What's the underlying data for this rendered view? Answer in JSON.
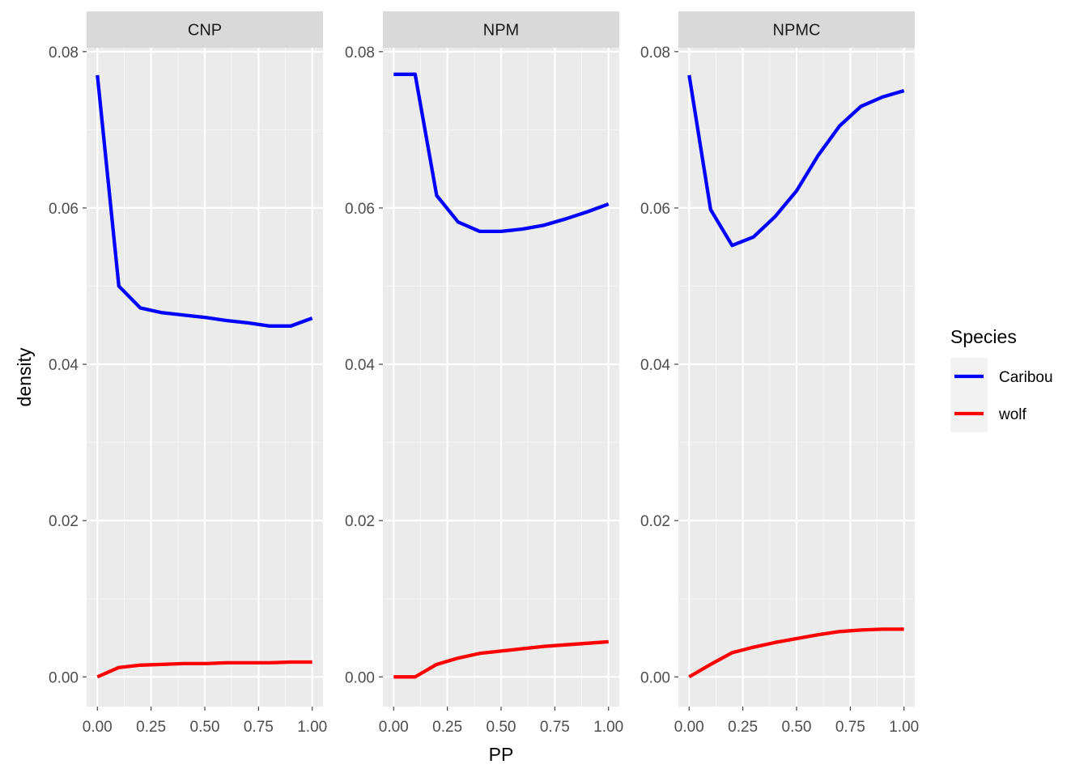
{
  "chart_data": {
    "type": "line",
    "xlabel": "PP",
    "ylabel": "density",
    "xlim": [
      -0.05,
      1.05
    ],
    "ylim": [
      -0.0038,
      0.0805
    ],
    "x_ticks": [
      0,
      0.25,
      0.5,
      0.75,
      1
    ],
    "x_tick_labels": [
      "0.00",
      "0.25",
      "0.50",
      "0.75",
      "1.00"
    ],
    "y_ticks": [
      0,
      0.02,
      0.04,
      0.06,
      0.08
    ],
    "y_tick_labels": [
      "0.00",
      "0.02",
      "0.04",
      "0.06",
      "0.08"
    ],
    "grid": true,
    "legend": {
      "title": "Species",
      "placement": "right",
      "entries": [
        {
          "label": "Caribou",
          "color": "#0000FF"
        },
        {
          "label": "wolf",
          "color": "#FF0000"
        }
      ]
    },
    "x": [
      0,
      0.1,
      0.2,
      0.3,
      0.4,
      0.5,
      0.6,
      0.7,
      0.8,
      0.9,
      1.0
    ],
    "panels": [
      {
        "title": "CNP",
        "series": [
          {
            "name": "Caribou",
            "color": "#0000FF",
            "values": [
              0.077,
              0.05,
              0.0472,
              0.0466,
              0.0463,
              0.046,
              0.0456,
              0.0453,
              0.0449,
              0.0449,
              0.0459
            ]
          },
          {
            "name": "wolf",
            "color": "#FF0000",
            "values": [
              0.0,
              0.0012,
              0.0015,
              0.0016,
              0.0017,
              0.0017,
              0.0018,
              0.0018,
              0.0018,
              0.0019,
              0.0019
            ]
          }
        ]
      },
      {
        "title": "NPM",
        "series": [
          {
            "name": "Caribou",
            "color": "#0000FF",
            "values": [
              0.0771,
              0.0771,
              0.0616,
              0.0582,
              0.057,
              0.057,
              0.0573,
              0.0578,
              0.0586,
              0.0595,
              0.0605
            ]
          },
          {
            "name": "wolf",
            "color": "#FF0000",
            "values": [
              0.0,
              0.0,
              0.0016,
              0.0024,
              0.003,
              0.0033,
              0.0036,
              0.0039,
              0.0041,
              0.0043,
              0.0045
            ]
          }
        ]
      },
      {
        "title": "NPMC",
        "series": [
          {
            "name": "Caribou",
            "color": "#0000FF",
            "values": [
              0.077,
              0.0598,
              0.0552,
              0.0563,
              0.0589,
              0.0622,
              0.0667,
              0.0705,
              0.073,
              0.0742,
              0.075
            ]
          },
          {
            "name": "wolf",
            "color": "#FF0000",
            "values": [
              0.0,
              0.0016,
              0.0031,
              0.0038,
              0.0044,
              0.0049,
              0.0054,
              0.0058,
              0.006,
              0.0061,
              0.0061
            ]
          }
        ]
      }
    ]
  }
}
